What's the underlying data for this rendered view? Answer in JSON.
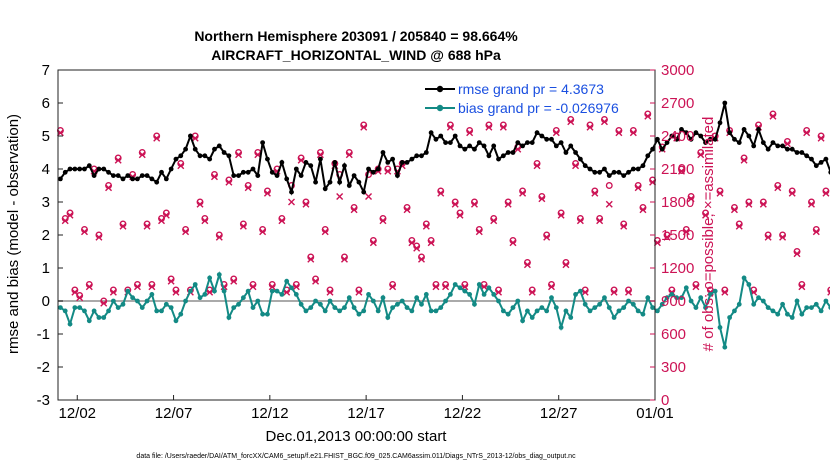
{
  "chart_data": {
    "type": "line",
    "title_line1": "Northern Hemisphere 203091 / 205840 = 98.664%",
    "title_line2": "AIRCRAFT_HORIZONTAL_WIND @ 688 hPa",
    "xlabel": "Dec.01,2013 00:00:00 start",
    "ylabel_left": "rmse and bias (model - observation)",
    "ylabel_right": "# of obs: o=possible; ×=assimilated",
    "x_tick_labels": [
      "12/02",
      "12/07",
      "12/12",
      "12/17",
      "12/22",
      "12/27",
      "01/01"
    ],
    "x_tick_days": [
      1,
      6,
      11,
      16,
      21,
      26,
      31
    ],
    "xlim_days": [
      0,
      31
    ],
    "ylim_left": [
      -3,
      7
    ],
    "y_ticks_left": [
      "-3",
      "-2",
      "-1",
      "0",
      "1",
      "2",
      "3",
      "4",
      "5",
      "6",
      "7"
    ],
    "ylim_right": [
      0,
      3000
    ],
    "y_ticks_right": [
      "0",
      "300",
      "600",
      "900",
      "1200",
      "1500",
      "1800",
      "2100",
      "2400",
      "2700",
      "3000"
    ],
    "grid": false,
    "legend_position": "top-right",
    "x_step_days": 0.25,
    "series": [
      {
        "name": "rmse grand pr = 4.3673",
        "color": "#000000",
        "axis": "left",
        "values": [
          3.7,
          3.9,
          4.0,
          4.0,
          4.0,
          4.0,
          4.1,
          3.8,
          4.0,
          4.0,
          3.9,
          3.8,
          3.8,
          3.7,
          3.8,
          3.7,
          3.7,
          3.8,
          3.8,
          3.7,
          3.6,
          3.9,
          3.7,
          4.0,
          4.3,
          4.4,
          4.6,
          5.0,
          4.6,
          4.4,
          4.4,
          4.3,
          4.6,
          4.7,
          4.5,
          4.4,
          3.8,
          3.8,
          3.9,
          3.9,
          4.0,
          3.8,
          4.8,
          4.3,
          3.9,
          3.8,
          4.2,
          3.7,
          3.3,
          4.0,
          3.8,
          4.2,
          4.1,
          3.6,
          4.3,
          3.4,
          3.6,
          4.2,
          3.6,
          4.1,
          3.5,
          3.8,
          3.6,
          3.3,
          4.0,
          3.9,
          4.0,
          4.5,
          4.2,
          4.3,
          3.8,
          4.2,
          4.2,
          4.3,
          4.4,
          4.4,
          4.5,
          5.1,
          4.9,
          5.0,
          4.8,
          4.8,
          5.0,
          4.7,
          4.6,
          4.7,
          4.6,
          4.8,
          4.7,
          4.4,
          4.7,
          4.3,
          4.4,
          4.5,
          4.5,
          4.8,
          4.7,
          4.8,
          4.8,
          5.1,
          5.0,
          4.9,
          4.9,
          4.7,
          4.8,
          4.5,
          4.7,
          4.5,
          4.3,
          4.1,
          4.0,
          3.9,
          3.9,
          4.0,
          3.8,
          3.9,
          3.9,
          3.8,
          3.9,
          4.0,
          4.0,
          4.1,
          4.4,
          4.6,
          4.9,
          4.6,
          4.8,
          5.0,
          4.9,
          5.2,
          5.1,
          4.9,
          5.1,
          5.0,
          4.8,
          4.9,
          4.9,
          5.4,
          6.0,
          5.1,
          4.9,
          4.8,
          5.2,
          5.0,
          4.7,
          5.2,
          4.8,
          4.6,
          4.8,
          4.7,
          4.7,
          4.6,
          4.6,
          4.5,
          4.5,
          4.4,
          4.3,
          4.1,
          4.2,
          4.3,
          3.9,
          4.1,
          4.6,
          3.7,
          4.7,
          4.6,
          4.5,
          4.4,
          4.4
        ]
      },
      {
        "name": "bias grand pr = -0.026976",
        "color": "#138a85",
        "axis": "left",
        "values": [
          -0.2,
          -0.3,
          -0.7,
          -0.2,
          -0.2,
          -0.3,
          -0.6,
          -0.3,
          -0.5,
          -0.5,
          -0.3,
          0.0,
          -0.2,
          -0.1,
          0.3,
          0.1,
          0.0,
          -0.2,
          0.0,
          0.2,
          -0.3,
          -0.3,
          -0.1,
          -0.2,
          -0.6,
          -0.4,
          0.0,
          0.3,
          0.5,
          0.1,
          0.2,
          0.7,
          0.3,
          0.8,
          0.3,
          -0.5,
          -0.2,
          -0.1,
          0.1,
          0.3,
          -0.2,
          0.0,
          -0.4,
          -0.4,
          0.3,
          0.3,
          0.2,
          0.6,
          0.4,
          0.2,
          -0.1,
          -0.3,
          -0.2,
          0.0,
          -0.1,
          -0.3,
          0.0,
          -0.2,
          -0.3,
          -0.2,
          0.1,
          -0.2,
          -0.4,
          -0.3,
          0.2,
          0.0,
          -0.3,
          0.1,
          -0.5,
          -0.2,
          -0.1,
          0.0,
          -0.2,
          -0.3,
          0.1,
          -0.1,
          0.2,
          -0.3,
          -0.3,
          -0.2,
          0.0,
          0.2,
          0.5,
          0.4,
          0.3,
          0.2,
          -0.1,
          0.5,
          0.2,
          0.4,
          0.2,
          0.0,
          -0.3,
          -0.4,
          -0.2,
          0.0,
          -0.6,
          -0.3,
          -0.5,
          -0.3,
          -0.2,
          -0.3,
          0.1,
          -0.2,
          -0.8,
          -0.3,
          -0.5,
          0.2,
          0.3,
          -0.1,
          -0.3,
          -0.2,
          -0.1,
          0.1,
          -0.2,
          -0.5,
          -0.3,
          -0.2,
          0.0,
          -0.1,
          -0.3,
          -0.4,
          0.1,
          -0.2,
          -0.3,
          -0.1,
          0.1,
          0.2,
          0.1,
          0.1,
          0.4,
          0.0,
          -0.2,
          0.1,
          -0.2,
          0.2,
          0.3,
          -0.8,
          -1.4,
          -0.5,
          -0.3,
          -0.1,
          0.7,
          0.5,
          -0.1,
          0.1,
          0.0,
          -0.2,
          -0.3,
          -0.4,
          -0.1,
          -0.4,
          -0.5,
          0.0,
          -0.4,
          -0.2,
          -0.2,
          -0.1,
          -0.3,
          0.0,
          -0.2,
          -0.3,
          0.0,
          -0.1,
          -0.4,
          -0.6,
          -0.2,
          0.3,
          0.0,
          -0.1,
          0.1
        ]
      },
      {
        "name": "possible",
        "marker": "circle",
        "color": "#cc1355",
        "axis": "right",
        "values": [
          2450,
          1650,
          1700,
          1000,
          950,
          1550,
          1050,
          2100,
          1500,
          900,
          1950,
          1000,
          2200,
          1600,
          1000,
          2050,
          1050,
          2250,
          1600,
          1050,
          2400,
          1650,
          1700,
          1100,
          1000,
          2150,
          1550,
          1000,
          2400,
          1800,
          1650,
          1000,
          2050,
          1500,
          1050,
          2000,
          1100,
          2250,
          1600,
          1950,
          1050,
          2250,
          1550,
          1900,
          1050,
          2100,
          1650,
          1000,
          1950,
          1050,
          2200,
          1800,
          1300,
          1100,
          2250,
          1550,
          1000,
          2150,
          2050,
          1300,
          2250,
          1750,
          1000,
          2500,
          2050,
          1450,
          2100,
          1650,
          2100,
          1050,
          2100,
          2150,
          1750,
          1450,
          1400,
          1300,
          1600,
          1450,
          1050,
          1900,
          1050,
          2500,
          1800,
          1700,
          1050,
          2450,
          1800,
          1550,
          1050,
          2500,
          1650,
          1000,
          2500,
          1800,
          1450,
          2300,
          1900,
          1250,
          1000,
          2150,
          1850,
          1500,
          1050,
          2450,
          1700,
          1250,
          2550,
          2150,
          1650,
          1000,
          2500,
          1900,
          1650,
          2550,
          1950,
          1000,
          2450,
          1600,
          1000,
          2450,
          1950,
          1750,
          2600,
          2000,
          1450,
          2300,
          1500,
          1000,
          2400,
          2100,
          1550,
          1850,
          1050,
          2250,
          1700,
          1000,
          2400,
          1900,
          1000,
          2450,
          1750,
          1600,
          2200,
          1800,
          1000,
          2500,
          1800,
          1500,
          2600,
          1950,
          1500,
          2350,
          1900,
          1350,
          1050,
          2450,
          1800,
          1550,
          2400,
          1900,
          1000,
          2250,
          1800,
          1600,
          1000,
          2050
        ]
      },
      {
        "name": "assimilated",
        "marker": "x",
        "color": "#cc1355",
        "axis": "right",
        "values": [
          2430,
          1630,
          1680,
          980,
          930,
          1530,
          1030,
          2080,
          1480,
          880,
          1930,
          980,
          2180,
          1580,
          980,
          2030,
          1030,
          2230,
          1580,
          1030,
          2380,
          1630,
          1680,
          1080,
          980,
          2130,
          1530,
          980,
          2380,
          1780,
          1630,
          980,
          2030,
          1480,
          1030,
          1980,
          1080,
          2230,
          1580,
          1930,
          1030,
          2230,
          1530,
          1880,
          1030,
          2080,
          1630,
          980,
          1800,
          1030,
          2180,
          1780,
          1280,
          1080,
          2230,
          1530,
          980,
          2130,
          1850,
          1280,
          2230,
          1730,
          980,
          2480,
          1850,
          1430,
          2080,
          1630,
          2080,
          1030,
          2080,
          2130,
          1730,
          1430,
          1380,
          1280,
          1580,
          1430,
          1030,
          1880,
          1030,
          2480,
          1780,
          1680,
          1030,
          2430,
          1780,
          1530,
          1030,
          2480,
          1630,
          980,
          2480,
          1780,
          1430,
          2280,
          1880,
          1230,
          980,
          2130,
          1830,
          1480,
          1030,
          2430,
          1680,
          1230,
          2530,
          2130,
          1630,
          980,
          2480,
          1880,
          1630,
          2530,
          1780,
          980,
          2430,
          1580,
          980,
          2430,
          1930,
          1730,
          2580,
          1980,
          1430,
          2280,
          1480,
          980,
          2380,
          2080,
          1530,
          1830,
          1030,
          2230,
          1680,
          980,
          2380,
          1880,
          980,
          2430,
          1730,
          1580,
          2180,
          1780,
          980,
          2480,
          1780,
          1480,
          2580,
          1930,
          1480,
          2330,
          1880,
          1330,
          1030,
          2430,
          1780,
          1530,
          2380,
          1880,
          980,
          2230,
          1780,
          1580,
          980,
          2030
        ]
      }
    ],
    "footnote": "data file: /Users/raeder/DAI/ATM_forcXX/CAM6_setup/f.e21.FHIST_BGC.f09_025.CAM6assim.011/Diags_NTrS_2013-12/obs_diag_output.nc",
    "colors": {
      "rmse": "#000000",
      "bias": "#138a85",
      "obs": "#cc1355",
      "zero_line": "#aaaaaa",
      "legend_text": "#1a4fe0"
    }
  }
}
